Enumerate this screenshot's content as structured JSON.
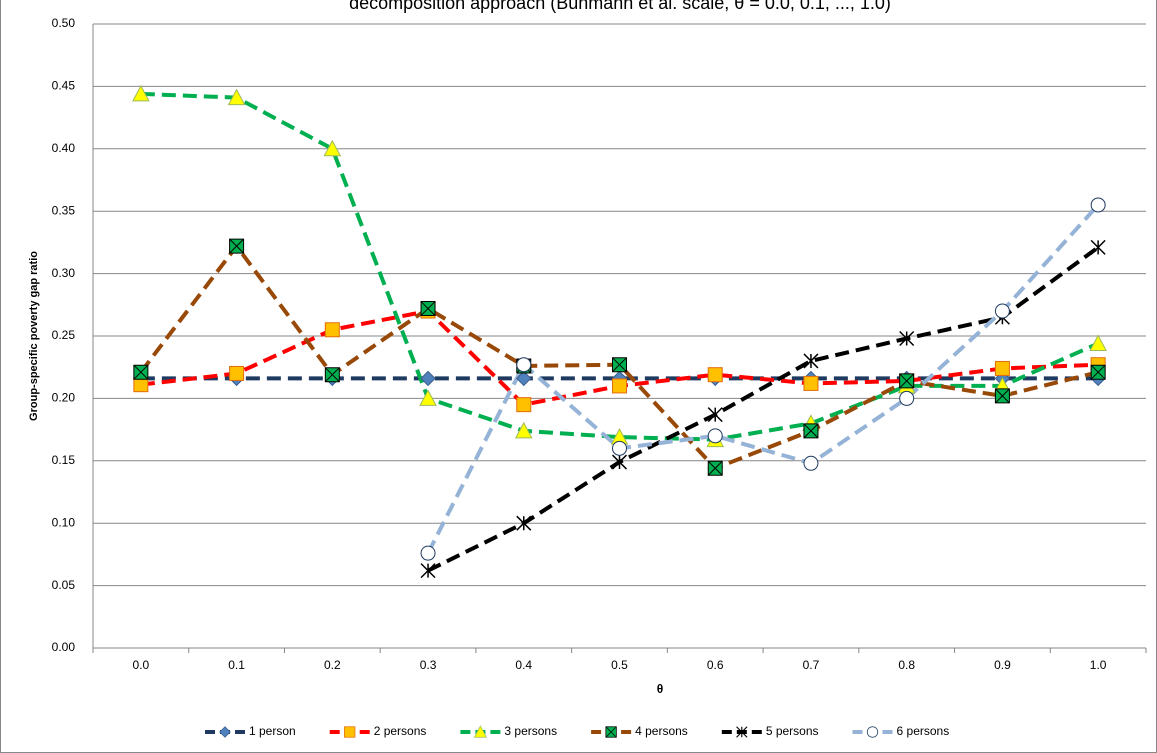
{
  "chart_data": {
    "type": "line",
    "title": "decomposition approach (Buhmann et al. scale, θ = 0.0, 0.1, ..., 1.0)",
    "x_label": "θ",
    "y_label": "Group-specific poverty gap ratio",
    "categories": [
      "0.0",
      "0.1",
      "0.2",
      "0.3",
      "0.4",
      "0.5",
      "0.6",
      "0.7",
      "0.8",
      "0.9",
      "1.0"
    ],
    "ylim": [
      0,
      0.5
    ],
    "yticks": [
      {
        "value": 0,
        "label": "0.00"
      },
      {
        "value": 0.05,
        "label": "0.05"
      },
      {
        "value": 0.1,
        "label": "0.10"
      },
      {
        "value": 0.15,
        "label": "0.15"
      },
      {
        "value": 0.2,
        "label": "0.20"
      },
      {
        "value": 0.25,
        "label": "0.25"
      },
      {
        "value": 0.3,
        "label": "0.30"
      },
      {
        "value": 0.35,
        "label": "0.35"
      },
      {
        "value": 0.4,
        "label": "0.40"
      },
      {
        "value": 0.45,
        "label": "0.45"
      },
      {
        "value": 0.5,
        "label": "0.50"
      }
    ],
    "grid": true,
    "legend": "bottom",
    "series": [
      {
        "name": "1 person",
        "color": "#1f3a60",
        "marker": "diamond",
        "marker_color": "#4f81bd",
        "values": [
          0.216,
          0.216,
          0.216,
          0.216,
          0.216,
          0.216,
          0.216,
          0.216,
          0.216,
          0.216,
          0.216
        ]
      },
      {
        "name": "2 persons",
        "color": "#ff0000",
        "marker": "square",
        "marker_color": "#ffc000",
        "values": [
          0.211,
          0.22,
          0.255,
          0.27,
          0.195,
          0.21,
          0.219,
          0.212,
          0.214,
          0.224,
          0.227
        ]
      },
      {
        "name": "3 persons",
        "color": "#00b050",
        "marker": "triangle",
        "marker_color": "#ffff00",
        "values": [
          0.444,
          0.441,
          0.4,
          0.2,
          0.174,
          0.169,
          0.167,
          0.18,
          0.21,
          0.21,
          0.244
        ]
      },
      {
        "name": "4 persons",
        "color": "#984807",
        "marker": "xsquare",
        "marker_color": "#00b050",
        "values": [
          0.221,
          0.322,
          0.219,
          0.272,
          0.226,
          0.227,
          0.144,
          0.174,
          0.214,
          0.202,
          0.221
        ]
      },
      {
        "name": "5 persons",
        "color": "#000000",
        "marker": "star",
        "marker_color": "#000000",
        "values": [
          null,
          null,
          null,
          0.062,
          0.1,
          0.149,
          0.187,
          0.23,
          0.248,
          0.265,
          0.321
        ]
      },
      {
        "name": "6 persons",
        "color": "#95b3d7",
        "marker": "circle",
        "marker_color": "#ffffff",
        "values": [
          null,
          null,
          null,
          0.076,
          0.227,
          0.16,
          0.17,
          0.148,
          0.2,
          0.27,
          0.355
        ]
      }
    ]
  }
}
